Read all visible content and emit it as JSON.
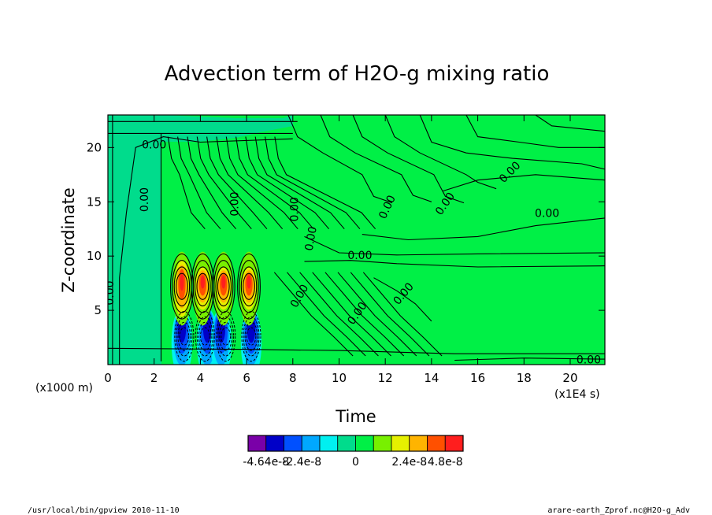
{
  "chart_data": {
    "type": "heatmap",
    "title": "Advection term of H2O-g mixing ratio",
    "xlabel": "Time",
    "ylabel": "Z-coordinate",
    "x_unit": "(x1E4 s)",
    "y_unit": "(x1000 m)",
    "xlim": [
      0,
      21.5
    ],
    "ylim": [
      0,
      23
    ],
    "x_ticks": [
      0,
      2,
      4,
      6,
      8,
      10,
      12,
      14,
      16,
      18,
      20
    ],
    "y_ticks": [
      5,
      10,
      15,
      20
    ],
    "x_tick_labels": [
      "0",
      "2",
      "4",
      "6",
      "8",
      "10",
      "12",
      "14",
      "16",
      "18",
      "20"
    ],
    "y_tick_labels": [
      "5",
      "10",
      "15",
      "20"
    ],
    "contour_label": "0.00",
    "colorbar": {
      "colors": [
        "#7a00a8",
        "#0000c8",
        "#0050ff",
        "#00a8ff",
        "#00f0f0",
        "#00dc8c",
        "#00f046",
        "#78f000",
        "#e6f000",
        "#ffb400",
        "#ff5000",
        "#ff1e1e"
      ],
      "tick_labels": [
        "-4.64e-8",
        "-2.4e-8",
        "0",
        "2.4e-8",
        "4.8e-8"
      ]
    }
  },
  "footer": {
    "left": "/usr/local/bin/gpview  2010-11-10",
    "right": "arare-earth_Zprof.nc@H2O-g_Adv"
  }
}
